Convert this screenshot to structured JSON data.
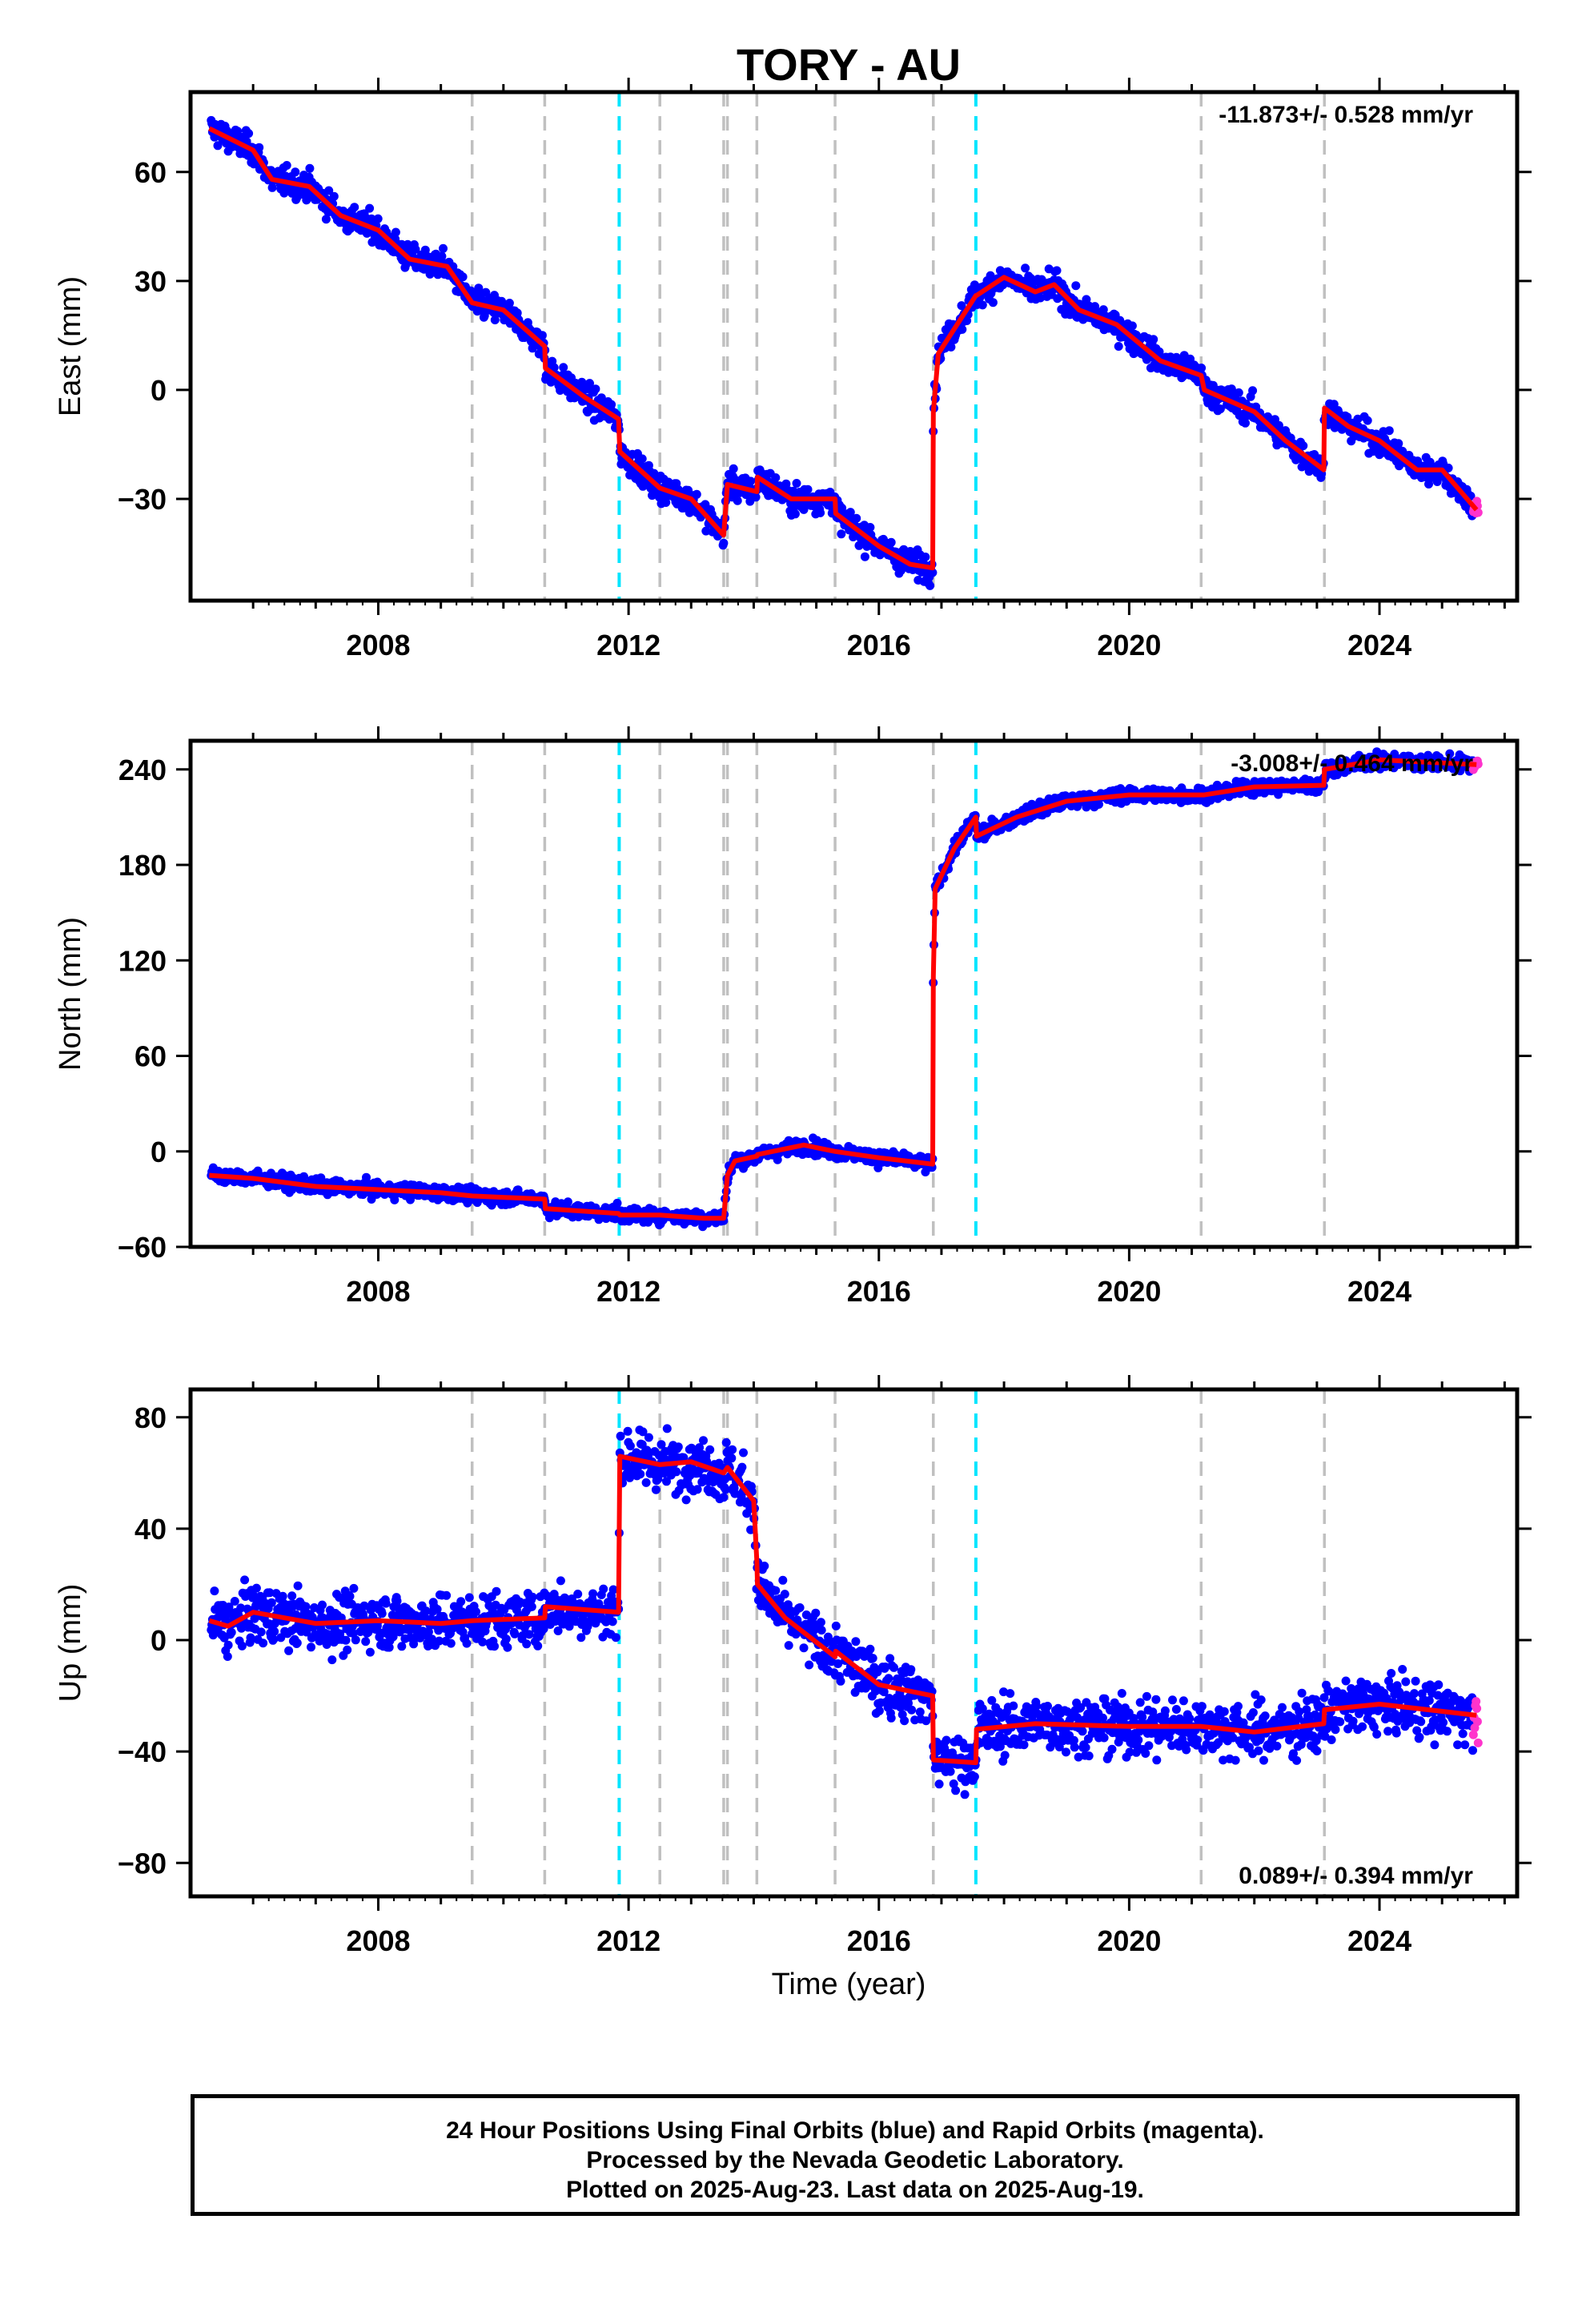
{
  "chart_data": {
    "title": "TORY - AU",
    "xlabel": "Time (year)",
    "type": "scatter",
    "x_range": [
      2005.0,
      2026.2
    ],
    "x_ticks": [
      2008,
      2012,
      2016,
      2020,
      2024
    ],
    "colors": {
      "final_orbits": "#0000ff",
      "rapid_orbits": "#ff33cc",
      "model": "#ff0000",
      "equipment_change": "#c0c0c0",
      "earthquake": "#00e5ff"
    },
    "event_lines": [
      {
        "x": 2009.5,
        "kind": "equipment_change"
      },
      {
        "x": 2010.66,
        "kind": "equipment_change"
      },
      {
        "x": 2011.85,
        "kind": "earthquake"
      },
      {
        "x": 2012.5,
        "kind": "equipment_change"
      },
      {
        "x": 2013.52,
        "kind": "equipment_change"
      },
      {
        "x": 2013.58,
        "kind": "equipment_change"
      },
      {
        "x": 2014.05,
        "kind": "equipment_change"
      },
      {
        "x": 2015.3,
        "kind": "equipment_change"
      },
      {
        "x": 2016.87,
        "kind": "equipment_change"
      },
      {
        "x": 2017.55,
        "kind": "earthquake"
      },
      {
        "x": 2021.15,
        "kind": "equipment_change"
      },
      {
        "x": 2023.12,
        "kind": "equipment_change"
      }
    ],
    "panels": [
      {
        "name": "east",
        "ylabel": "East (mm)",
        "ylim": [
          -58,
          82
        ],
        "y_ticks": [
          "60",
          "30",
          "0",
          "−30"
        ],
        "y_tick_values": [
          60,
          30,
          0,
          -30
        ],
        "rate_label": "-11.873+/- 0.528 mm/yr",
        "rate_position": "top-right",
        "scatter_sd": 2.6,
        "model": [
          [
            2005.3,
            72
          ],
          [
            2006.0,
            66
          ],
          [
            2006.3,
            58
          ],
          [
            2006.9,
            56
          ],
          [
            2007.4,
            48
          ],
          [
            2008.0,
            44
          ],
          [
            2008.5,
            36
          ],
          [
            2009.1,
            34
          ],
          [
            2009.5,
            24
          ],
          [
            2010.0,
            22
          ],
          [
            2010.66,
            12
          ],
          [
            2010.67,
            6
          ],
          [
            2011.3,
            -2
          ],
          [
            2011.84,
            -8
          ],
          [
            2011.86,
            -17
          ],
          [
            2012.5,
            -27
          ],
          [
            2013.0,
            -30
          ],
          [
            2013.52,
            -40
          ],
          [
            2013.58,
            -26
          ],
          [
            2014.05,
            -28
          ],
          [
            2014.06,
            -24
          ],
          [
            2014.6,
            -30
          ],
          [
            2015.3,
            -30
          ],
          [
            2015.31,
            -34
          ],
          [
            2016.0,
            -43
          ],
          [
            2016.5,
            -48
          ],
          [
            2016.86,
            -49
          ],
          [
            2016.87,
            -6
          ],
          [
            2016.95,
            10
          ],
          [
            2017.55,
            26
          ],
          [
            2017.56,
            26
          ],
          [
            2018.0,
            31
          ],
          [
            2018.5,
            27
          ],
          [
            2018.8,
            29
          ],
          [
            2019.2,
            22
          ],
          [
            2019.8,
            18
          ],
          [
            2020.5,
            8
          ],
          [
            2021.15,
            4
          ],
          [
            2021.2,
            0
          ],
          [
            2022.0,
            -6
          ],
          [
            2022.5,
            -14
          ],
          [
            2023.11,
            -22
          ],
          [
            2023.12,
            -5
          ],
          [
            2023.5,
            -10
          ],
          [
            2024.0,
            -14
          ],
          [
            2024.6,
            -22
          ],
          [
            2025.0,
            -22
          ],
          [
            2025.55,
            -33
          ]
        ]
      },
      {
        "name": "north",
        "ylabel": "North (mm)",
        "ylim": [
          -60,
          258
        ],
        "y_ticks": [
          "240",
          "180",
          "120",
          "60",
          "0",
          "−60"
        ],
        "y_tick_values": [
          240,
          180,
          120,
          60,
          0,
          -60
        ],
        "rate_label": "-3.008+/- 0.464 mm/yr",
        "rate_position": "top-right",
        "scatter_sd": 3.2,
        "model": [
          [
            2005.3,
            -15
          ],
          [
            2006.0,
            -17
          ],
          [
            2007.0,
            -22
          ],
          [
            2008.0,
            -24
          ],
          [
            2009.0,
            -26
          ],
          [
            2009.5,
            -28
          ],
          [
            2010.66,
            -30
          ],
          [
            2010.67,
            -36
          ],
          [
            2011.84,
            -39
          ],
          [
            2011.86,
            -40
          ],
          [
            2012.5,
            -40
          ],
          [
            2013.2,
            -42
          ],
          [
            2013.52,
            -42
          ],
          [
            2013.58,
            -15
          ],
          [
            2013.7,
            -6
          ],
          [
            2014.05,
            -3
          ],
          [
            2014.06,
            -2
          ],
          [
            2014.8,
            4
          ],
          [
            2015.3,
            0
          ],
          [
            2016.0,
            -4
          ],
          [
            2016.86,
            -8
          ],
          [
            2016.87,
            110
          ],
          [
            2016.9,
            165
          ],
          [
            2017.2,
            190
          ],
          [
            2017.55,
            210
          ],
          [
            2017.56,
            198
          ],
          [
            2018.2,
            210
          ],
          [
            2019.0,
            220
          ],
          [
            2020.0,
            224
          ],
          [
            2021.15,
            224
          ],
          [
            2021.2,
            224
          ],
          [
            2022.0,
            229
          ],
          [
            2023.11,
            230
          ],
          [
            2023.12,
            240
          ],
          [
            2024.0,
            246
          ],
          [
            2025.55,
            243
          ]
        ]
      },
      {
        "name": "up",
        "ylabel": "Up (mm)",
        "ylim": [
          -92,
          90
        ],
        "y_ticks": [
          "80",
          "40",
          "0",
          "−40",
          "−80"
        ],
        "y_tick_values": [
          80,
          40,
          0,
          -40,
          -80
        ],
        "rate_label": "0.089+/- 0.394 mm/yr",
        "rate_position": "bottom-right",
        "scatter_sd": 7.0,
        "model": [
          [
            2005.3,
            7
          ],
          [
            2005.6,
            5
          ],
          [
            2006.0,
            10
          ],
          [
            2007.0,
            6
          ],
          [
            2008.0,
            7
          ],
          [
            2009.0,
            6
          ],
          [
            2009.5,
            7
          ],
          [
            2010.66,
            8
          ],
          [
            2010.67,
            12
          ],
          [
            2011.84,
            10
          ],
          [
            2011.86,
            66
          ],
          [
            2012.5,
            63
          ],
          [
            2013.0,
            64
          ],
          [
            2013.52,
            60
          ],
          [
            2013.58,
            62
          ],
          [
            2014.0,
            50
          ],
          [
            2014.05,
            28
          ],
          [
            2014.06,
            20
          ],
          [
            2014.5,
            8
          ],
          [
            2015.3,
            -6
          ],
          [
            2015.31,
            -4
          ],
          [
            2016.0,
            -16
          ],
          [
            2016.86,
            -20
          ],
          [
            2016.87,
            -43
          ],
          [
            2017.55,
            -44
          ],
          [
            2017.56,
            -32
          ],
          [
            2018.5,
            -30
          ],
          [
            2020.0,
            -31
          ],
          [
            2021.15,
            -31
          ],
          [
            2022.0,
            -33
          ],
          [
            2023.11,
            -30
          ],
          [
            2023.12,
            -25
          ],
          [
            2024.0,
            -23
          ],
          [
            2025.55,
            -27
          ]
        ]
      }
    ]
  },
  "footer": {
    "line1": "24 Hour Positions Using Final Orbits (blue) and Rapid Orbits (magenta).",
    "line2": "Processed by the Nevada Geodetic Laboratory.",
    "line3": "Plotted on 2025-Aug-23. Last data on 2025-Aug-19."
  }
}
